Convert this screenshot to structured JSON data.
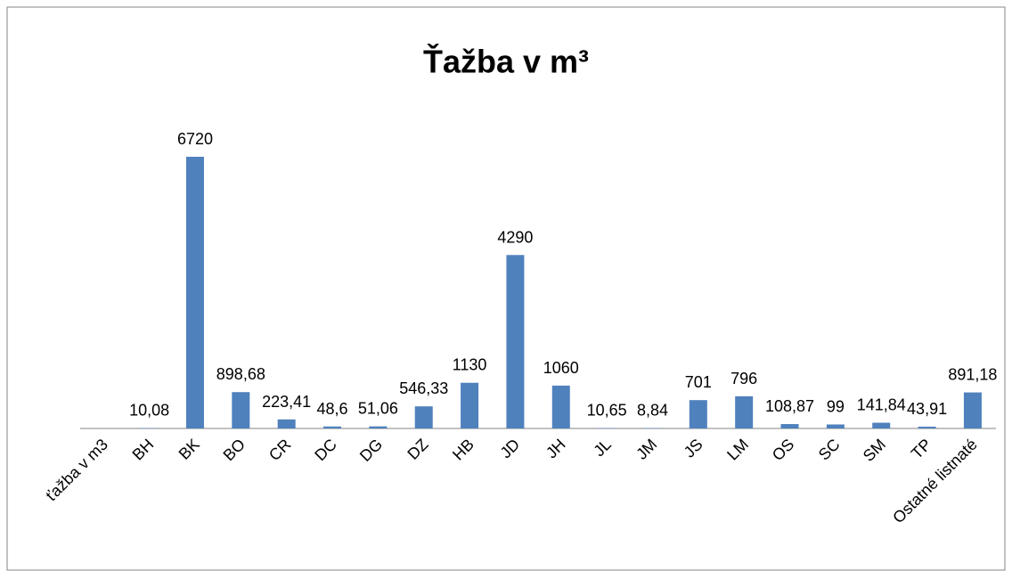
{
  "chart_data": {
    "type": "bar",
    "title": "Ťažba v m³",
    "categories": [
      "ťažba v m3",
      "BH",
      "BK",
      "BO",
      "CR",
      "DC",
      "DG",
      "DZ",
      "HB",
      "JD",
      "JH",
      "JL",
      "JM",
      "JS",
      "LM",
      "OS",
      "SC",
      "SM",
      "TP",
      "Ostatné listnaté"
    ],
    "values": [
      null,
      10.08,
      6720,
      898.68,
      223.41,
      48.6,
      51.06,
      546.33,
      1130,
      4290,
      1060,
      10.65,
      8.84,
      701,
      796,
      108.87,
      99,
      141.84,
      43.91,
      891.18
    ],
    "value_labels": [
      null,
      "10,08",
      "6720",
      "898,68",
      "223,41",
      "48,6",
      "51,06",
      "546,33",
      "1130",
      "4290",
      "1060",
      "10,65",
      "8,84",
      "701",
      "796",
      "108,87",
      "99",
      "141,84",
      "43,91",
      "891,18"
    ],
    "color": "#4f81bd"
  }
}
